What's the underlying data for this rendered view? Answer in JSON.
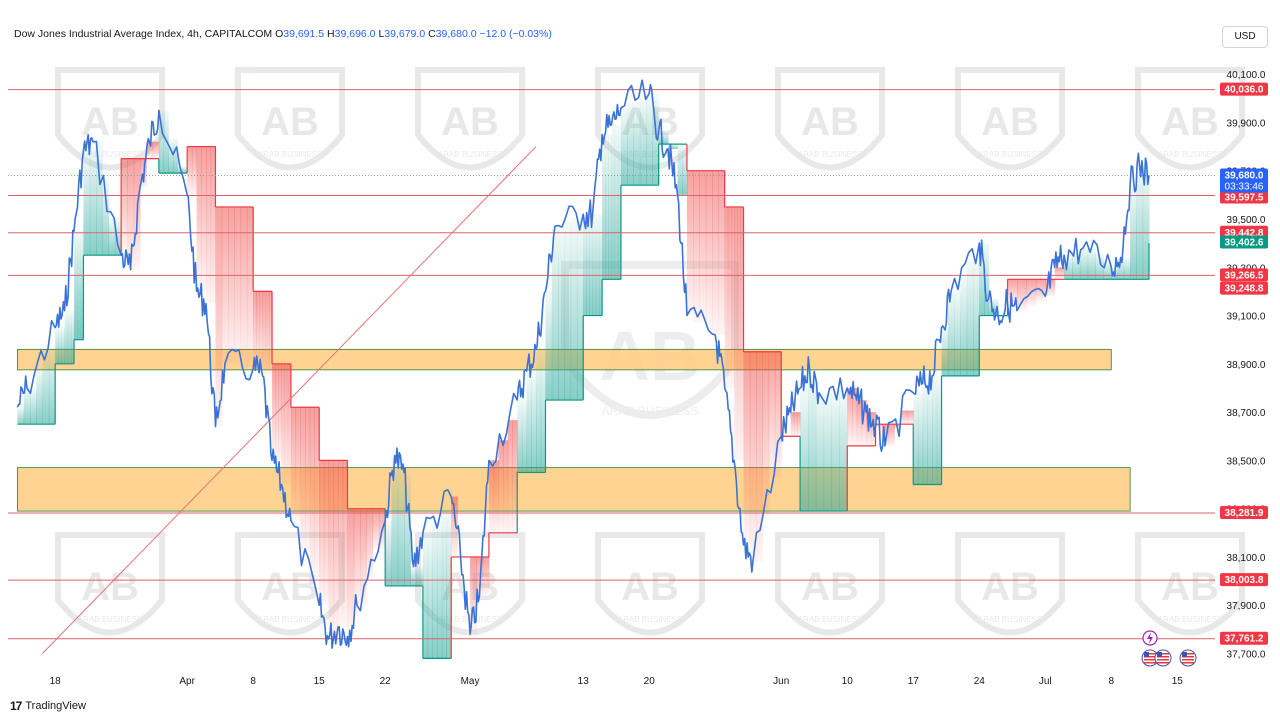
{
  "header": {
    "symbol": "Dow Jones Industrial Average Index, 4h, CAPITALCOM",
    "o_label": "O",
    "o_value": "39,691.5",
    "h_label": "H",
    "h_value": "39,696.0",
    "l_label": "L",
    "l_value": "39,679.0",
    "c_label": "C",
    "c_value": "39,680.0",
    "change": "−12.0 (−0.03%)"
  },
  "currency": "USD",
  "branding": {
    "icon": "tradingview-logo-icon",
    "text": "TradingView"
  },
  "watermark": {
    "text": "ARAB BUSINESS",
    "subtext": "COMPANY L.L.C"
  },
  "colors": {
    "up": "#089981",
    "down": "#f23645",
    "line": "#3a72d8",
    "level_line": "#e0606b",
    "zone_fill": "#ffcc80",
    "zone_border": "#2e7d32",
    "price_tag": "#2962ff"
  },
  "chart_data": {
    "type": "line",
    "title": "Dow Jones Industrial Average Index, 4h, CAPITALCOM",
    "xlabel": "",
    "ylabel": "",
    "ylim": [
      37640,
      40200
    ],
    "y_ticks": [
      "40,100.0",
      "39,900.0",
      "39,700.0",
      "39,500.0",
      "39,300.0",
      "39,100.0",
      "38,900.0",
      "38,700.0",
      "38,500.0",
      "38,300.0",
      "38,100.0",
      "37,900.0",
      "37,700.0"
    ],
    "y_tick_values": [
      40100,
      39900,
      39700,
      39500,
      39300,
      39100,
      38900,
      38700,
      38500,
      38300,
      38100,
      37900,
      37700
    ],
    "x_ticks": [
      {
        "label": "18",
        "date": "2024-03-18"
      },
      {
        "label": "Apr",
        "date": "2024-04-01"
      },
      {
        "label": "8",
        "date": "2024-04-08"
      },
      {
        "label": "15",
        "date": "2024-04-15"
      },
      {
        "label": "22",
        "date": "2024-04-22"
      },
      {
        "label": "May",
        "date": "2024-05-01"
      },
      {
        "label": "13",
        "date": "2024-05-13"
      },
      {
        "label": "20",
        "date": "2024-05-20"
      },
      {
        "label": "Jun",
        "date": "2024-06-03"
      },
      {
        "label": "10",
        "date": "2024-06-10"
      },
      {
        "label": "17",
        "date": "2024-06-17"
      },
      {
        "label": "24",
        "date": "2024-06-24"
      },
      {
        "label": "Jul",
        "date": "2024-07-01"
      },
      {
        "label": "8",
        "date": "2024-07-08"
      },
      {
        "label": "15",
        "date": "2024-07-15"
      }
    ],
    "price_series": {
      "name": "",
      "points": [
        [
          "2024-03-14",
          38720
        ],
        [
          "2024-03-15",
          38800
        ],
        [
          "2024-03-18",
          39050
        ],
        [
          "2024-03-19",
          39120
        ],
        [
          "2024-03-20",
          39450
        ],
        [
          "2024-03-21",
          39780
        ],
        [
          "2024-03-22",
          39820
        ],
        [
          "2024-03-25",
          39350
        ],
        [
          "2024-03-26",
          39290
        ],
        [
          "2024-03-27",
          39630
        ],
        [
          "2024-03-28",
          39820
        ],
        [
          "2024-03-29",
          39950
        ],
        [
          "2024-04-01",
          39600
        ],
        [
          "2024-04-02",
          39200
        ],
        [
          "2024-04-03",
          39150
        ],
        [
          "2024-04-04",
          38640
        ],
        [
          "2024-04-05",
          38900
        ],
        [
          "2024-04-08",
          38880
        ],
        [
          "2024-04-09",
          38850
        ],
        [
          "2024-04-10",
          38500
        ],
        [
          "2024-04-11",
          38400
        ],
        [
          "2024-04-12",
          38250
        ],
        [
          "2024-04-15",
          37900
        ],
        [
          "2024-04-16",
          37760
        ],
        [
          "2024-04-17",
          37810
        ],
        [
          "2024-04-18",
          37770
        ],
        [
          "2024-04-19",
          37900
        ],
        [
          "2024-04-22",
          38250
        ],
        [
          "2024-04-23",
          38520
        ],
        [
          "2024-04-24",
          38450
        ],
        [
          "2024-04-25",
          38060
        ],
        [
          "2024-04-26",
          38200
        ],
        [
          "2024-04-29",
          38350
        ],
        [
          "2024-04-30",
          38100
        ],
        [
          "2024-05-01",
          37780
        ],
        [
          "2024-05-02",
          37940
        ],
        [
          "2024-05-03",
          38500
        ],
        [
          "2024-05-06",
          38750
        ],
        [
          "2024-05-07",
          38870
        ],
        [
          "2024-05-08",
          38960
        ],
        [
          "2024-05-09",
          39200
        ],
        [
          "2024-05-10",
          39470
        ],
        [
          "2024-05-13",
          39520
        ],
        [
          "2024-05-14",
          39520
        ],
        [
          "2024-05-15",
          39850
        ],
        [
          "2024-05-16",
          39890
        ],
        [
          "2024-05-17",
          39960
        ],
        [
          "2024-05-20",
          40020
        ],
        [
          "2024-05-21",
          39860
        ],
        [
          "2024-05-22",
          39790
        ],
        [
          "2024-05-23",
          39600
        ],
        [
          "2024-05-24",
          39100
        ],
        [
          "2024-05-27",
          39020
        ],
        [
          "2024-05-28",
          38800
        ],
        [
          "2024-05-29",
          38500
        ],
        [
          "2024-05-30",
          38150
        ],
        [
          "2024-05-31",
          38080
        ],
        [
          "2024-06-03",
          38600
        ],
        [
          "2024-06-04",
          38700
        ],
        [
          "2024-06-05",
          38800
        ],
        [
          "2024-06-06",
          38880
        ],
        [
          "2024-06-07",
          38780
        ],
        [
          "2024-06-10",
          38800
        ],
        [
          "2024-06-11",
          38750
        ],
        [
          "2024-06-12",
          38700
        ],
        [
          "2024-06-13",
          38640
        ],
        [
          "2024-06-14",
          38560
        ],
        [
          "2024-06-17",
          38780
        ],
        [
          "2024-06-18",
          38820
        ],
        [
          "2024-06-19",
          38850
        ],
        [
          "2024-06-20",
          39050
        ],
        [
          "2024-06-21",
          39200
        ],
        [
          "2024-06-24",
          39400
        ],
        [
          "2024-06-25",
          39170
        ],
        [
          "2024-06-26",
          39100
        ],
        [
          "2024-06-27",
          39150
        ],
        [
          "2024-06-28",
          39120
        ],
        [
          "2024-07-01",
          39180
        ],
        [
          "2024-07-02",
          39300
        ],
        [
          "2024-07-03",
          39350
        ],
        [
          "2024-07-05",
          39380
        ],
        [
          "2024-07-08",
          39300
        ],
        [
          "2024-07-09",
          39340
        ],
        [
          "2024-07-10",
          39640
        ],
        [
          "2024-07-11",
          39720
        ],
        [
          "2024-07-12",
          39680
        ]
      ]
    },
    "levels": [
      {
        "label": "40,036.0",
        "value": 40036,
        "tag_color": "#f23645"
      },
      {
        "label": "39,597.5",
        "value": 39597.5,
        "tag_color": "#f23645"
      },
      {
        "label": "39,442.8",
        "value": 39442.8,
        "tag_color": "#f23645"
      },
      {
        "label": "39,266.5",
        "value": 39266.5,
        "tag_color": "#f23645"
      },
      {
        "label": "38,281.9",
        "value": 38281.9,
        "tag_color": "#f23645"
      },
      {
        "label": "38,003.8",
        "value": 38003.8,
        "tag_color": "#f23645"
      },
      {
        "label": "37,761.2",
        "value": 37761.2,
        "tag_color": "#f23645"
      }
    ],
    "price_tags": [
      {
        "label": "39,680.0",
        "sub": "03:33:46",
        "value": 39680,
        "color": "#2962ff"
      },
      {
        "label": "39,402.6",
        "value": 39402.6,
        "color": "#089981"
      },
      {
        "label": "39,248.8",
        "value": 39248.8,
        "color": "#f23645"
      }
    ],
    "zones": [
      {
        "from": 38875,
        "to": 38960,
        "start": "2024-03-14",
        "end": "2024-07-08"
      },
      {
        "from": 38290,
        "to": 38470,
        "start": "2024-03-14",
        "end": "2024-07-10"
      }
    ],
    "trendline": {
      "start": [
        "2024-03-14",
        37700
      ],
      "end": [
        "2024-05-08",
        39800
      ]
    },
    "trailing_stop": [
      [
        "2024-03-14",
        38650,
        "up"
      ],
      [
        "2024-03-18",
        38900,
        "up"
      ],
      [
        "2024-03-20",
        39000,
        "up"
      ],
      [
        "2024-03-21",
        39350,
        "up"
      ],
      [
        "2024-03-25",
        39750,
        "down"
      ],
      [
        "2024-03-29",
        39690,
        "up"
      ],
      [
        "2024-04-01",
        39800,
        "down"
      ],
      [
        "2024-04-04",
        39550,
        "down"
      ],
      [
        "2024-04-08",
        39200,
        "down"
      ],
      [
        "2024-04-10",
        38900,
        "down"
      ],
      [
        "2024-04-12",
        38720,
        "down"
      ],
      [
        "2024-04-15",
        38500,
        "down"
      ],
      [
        "2024-04-18",
        38300,
        "down"
      ],
      [
        "2024-04-22",
        37980,
        "up"
      ],
      [
        "2024-04-26",
        37680,
        "up"
      ],
      [
        "2024-04-29",
        38100,
        "down"
      ],
      [
        "2024-05-03",
        38200,
        "down"
      ],
      [
        "2024-05-06",
        38450,
        "up"
      ],
      [
        "2024-05-09",
        38750,
        "up"
      ],
      [
        "2024-05-13",
        39100,
        "up"
      ],
      [
        "2024-05-15",
        39250,
        "up"
      ],
      [
        "2024-05-17",
        39640,
        "up"
      ],
      [
        "2024-05-21",
        39810,
        "up"
      ],
      [
        "2024-05-24",
        39700,
        "down"
      ],
      [
        "2024-05-28",
        39550,
        "down"
      ],
      [
        "2024-05-30",
        38950,
        "down"
      ],
      [
        "2024-06-03",
        38600,
        "down"
      ],
      [
        "2024-06-05",
        38290,
        "up"
      ],
      [
        "2024-06-10",
        38560,
        "down"
      ],
      [
        "2024-06-13",
        38650,
        "down"
      ],
      [
        "2024-06-17",
        38400,
        "up"
      ],
      [
        "2024-06-20",
        38850,
        "up"
      ],
      [
        "2024-06-24",
        39100,
        "up"
      ],
      [
        "2024-06-27",
        39250,
        "down"
      ],
      [
        "2024-07-03",
        39250,
        "up"
      ],
      [
        "2024-07-08",
        39250,
        "up"
      ],
      [
        "2024-07-12",
        39400,
        "up"
      ]
    ],
    "events": [
      {
        "icon": "lightning-icon",
        "date": "2024-07-11"
      },
      {
        "icon": "us-flag-icon",
        "date": "2024-07-10"
      },
      {
        "icon": "us-flag-icon",
        "date": "2024-07-11"
      },
      {
        "icon": "us-flag-icon",
        "date": "2024-07-12"
      }
    ],
    "grid": false,
    "legend": "top-left"
  }
}
